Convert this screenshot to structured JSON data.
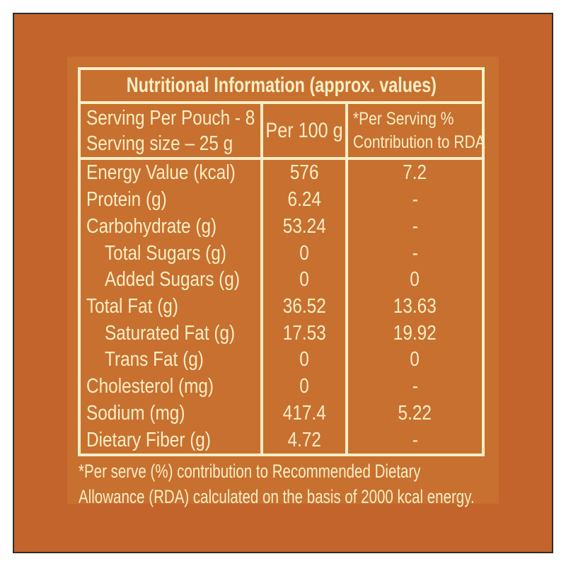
{
  "colors": {
    "frame_white": "#ffffff",
    "frame_line": "#2e2e2e",
    "background_outer": "#c2642b",
    "background_inner": "#c8702f",
    "cream": "#f8eec6"
  },
  "label": {
    "title": "Nutritional Information (approx. values)",
    "header": {
      "serving_line1": "Serving Per Pouch - 8",
      "serving_line2": "Serving size – 25 g",
      "per100": "Per 100 g",
      "rda_line1": "*Per Serving %",
      "rda_line2": "Contribution to RDA"
    },
    "rows": [
      {
        "label": "Energy Value (kcal)",
        "indent": false,
        "per100": "576",
        "rda": "7.2"
      },
      {
        "label": "Protein (g)",
        "indent": false,
        "per100": "6.24",
        "rda": "-"
      },
      {
        "label": "Carbohydrate (g)",
        "indent": false,
        "per100": "53.24",
        "rda": "-"
      },
      {
        "label": "Total Sugars (g)",
        "indent": true,
        "per100": "0",
        "rda": "-"
      },
      {
        "label": "Added Sugars (g)",
        "indent": true,
        "per100": "0",
        "rda": "0"
      },
      {
        "label": "Total Fat (g)",
        "indent": false,
        "per100": "36.52",
        "rda": "13.63"
      },
      {
        "label": "Saturated Fat (g)",
        "indent": true,
        "per100": "17.53",
        "rda": "19.92"
      },
      {
        "label": "Trans Fat (g)",
        "indent": true,
        "per100": "0",
        "rda": "0"
      },
      {
        "label": "Cholesterol (mg)",
        "indent": false,
        "per100": "0",
        "rda": "-"
      },
      {
        "label": "Sodium (mg)",
        "indent": false,
        "per100": "417.4",
        "rda": "5.22"
      },
      {
        "label": "Dietary Fiber (g)",
        "indent": false,
        "per100": "4.72",
        "rda": "-"
      }
    ],
    "footnote_line1": "*Per serve (%) contribution to Recommended Dietary",
    "footnote_line2": "Allowance (RDA) calculated on the basis of 2000 kcal energy."
  }
}
